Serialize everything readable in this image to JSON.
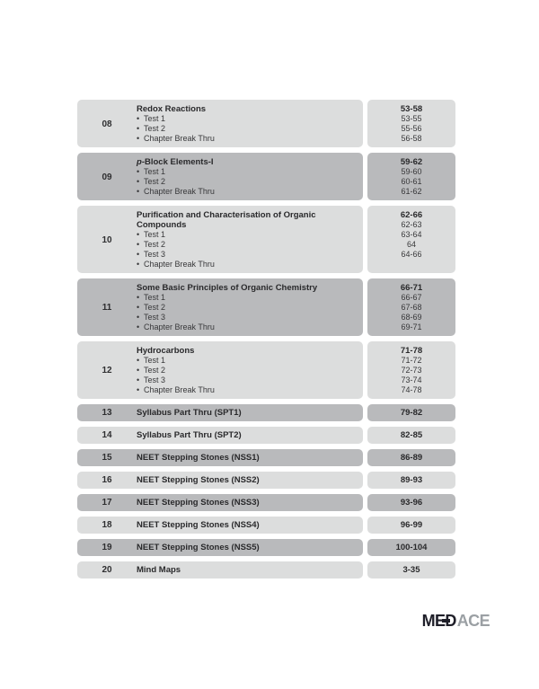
{
  "page": {
    "background": "#ffffff"
  },
  "toc": {
    "bullet": "•",
    "chapters": [
      {
        "num": "08",
        "title": "Redox Reactions",
        "pages": "53-58",
        "shade": "light",
        "sub_items": [
          {
            "label": "Test 1",
            "pages": "53-55"
          },
          {
            "label": "Test 2",
            "pages": "55-56"
          },
          {
            "label": "Chapter Break Thru",
            "pages": "56-58"
          }
        ]
      },
      {
        "num": "09",
        "title": "p-Block Elements-I",
        "title_italic_prefix": 1,
        "pages": "59-62",
        "shade": "dark",
        "sub_items": [
          {
            "label": "Test 1",
            "pages": "59-60"
          },
          {
            "label": "Test 2",
            "pages": "60-61"
          },
          {
            "label": "Chapter Break Thru",
            "pages": "61-62"
          }
        ]
      },
      {
        "num": "10",
        "title": "Purification and Characterisation of Organic Compounds",
        "pages": "62-66",
        "shade": "light",
        "sub_items": [
          {
            "label": "Test 1",
            "pages": "62-63"
          },
          {
            "label": "Test 2",
            "pages": "63-64"
          },
          {
            "label": "Test 3",
            "pages": "64"
          },
          {
            "label": "Chapter Break Thru",
            "pages": "64-66"
          }
        ]
      },
      {
        "num": "11",
        "title": "Some Basic Principles of Organic Chemistry",
        "pages": "66-71",
        "shade": "dark",
        "sub_items": [
          {
            "label": "Test 1",
            "pages": "66-67"
          },
          {
            "label": "Test 2",
            "pages": "67-68"
          },
          {
            "label": "Test 3",
            "pages": "68-69"
          },
          {
            "label": "Chapter Break Thru",
            "pages": "69-71"
          }
        ]
      },
      {
        "num": "12",
        "title": "Hydrocarbons",
        "pages": "71-78",
        "shade": "light",
        "sub_items": [
          {
            "label": "Test 1",
            "pages": "71-72"
          },
          {
            "label": "Test 2",
            "pages": "72-73"
          },
          {
            "label": "Test 3",
            "pages": "73-74"
          },
          {
            "label": "Chapter Break Thru",
            "pages": "74-78"
          }
        ]
      },
      {
        "num": "13",
        "title": "Syllabus Part Thru (SPT1)",
        "pages": "79-82",
        "shade": "dark",
        "sub_items": []
      },
      {
        "num": "14",
        "title": "Syllabus Part Thru (SPT2)",
        "pages": "82-85",
        "shade": "light",
        "sub_items": []
      },
      {
        "num": "15",
        "title": "NEET Stepping Stones (NSS1)",
        "pages": "86-89",
        "shade": "dark",
        "sub_items": []
      },
      {
        "num": "16",
        "title": "NEET Stepping Stones (NSS2)",
        "pages": "89-93",
        "shade": "light",
        "sub_items": []
      },
      {
        "num": "17",
        "title": "NEET Stepping Stones (NSS3)",
        "pages": "93-96",
        "shade": "dark",
        "sub_items": []
      },
      {
        "num": "18",
        "title": "NEET Stepping Stones (NSS4)",
        "pages": "96-99",
        "shade": "light",
        "sub_items": []
      },
      {
        "num": "19",
        "title": "NEET Stepping Stones (NSS5)",
        "pages": "100-104",
        "shade": "dark",
        "sub_items": []
      },
      {
        "num": "20",
        "title": "Mind Maps",
        "pages": "3-35",
        "shade": "light",
        "sub_items": []
      }
    ]
  },
  "logo": {
    "me": "ME",
    "d": "D",
    "ace": "ACE"
  },
  "colors": {
    "row_light": "#dcdddd",
    "row_dark": "#b9babc",
    "text": "#2e2e30",
    "logo_dark": "#1f1f29",
    "logo_gray": "#9ba0a4"
  }
}
